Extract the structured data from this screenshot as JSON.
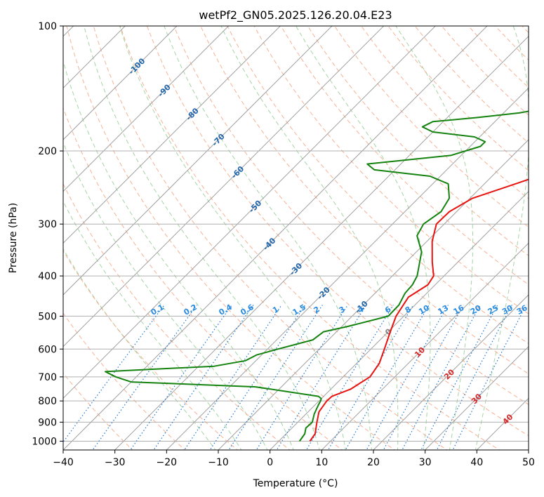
{
  "chart_data": {
    "type": "line",
    "title": "wetPf2_GN05.2025.126.20.04.E23",
    "xlabel": "Temperature (°C)",
    "ylabel": "Pressure (hPa)",
    "xlim": [
      -40,
      50
    ],
    "ylim": [
      1050,
      100
    ],
    "y_scale": "log",
    "grid": true,
    "x_ticks": [
      "−40",
      "−30",
      "−20",
      "−10",
      "0",
      "10",
      "20",
      "30",
      "40",
      "50"
    ],
    "x_tick_values": [
      -40,
      -30,
      -20,
      -10,
      0,
      10,
      20,
      30,
      40,
      50
    ],
    "y_ticks": [
      "100",
      "200",
      "300",
      "400",
      "500",
      "600",
      "700",
      "800",
      "900",
      "1000"
    ],
    "y_tick_values": [
      100,
      200,
      300,
      400,
      500,
      600,
      700,
      800,
      900,
      1000
    ],
    "series": [
      {
        "kind": "temperature",
        "color": "#e8130f",
        "p": [
          1000,
          960,
          925,
          900,
          850,
          800,
          780,
          750,
          700,
          650,
          600,
          550,
          500,
          450,
          420,
          400,
          370,
          330,
          300,
          280,
          260,
          240,
          220,
          200,
          180,
          160,
          140,
          120,
          110,
          100
        ],
        "t": [
          6.0,
          5.6,
          4.5,
          3.7,
          2.1,
          1.5,
          1.6,
          3.8,
          5.2,
          4.4,
          2.6,
          0.6,
          -1.5,
          -2.8,
          -1.4,
          -2.0,
          -5.0,
          -9.0,
          -11.5,
          -11.4,
          -9.5,
          -4.0,
          2.0,
          6.0,
          11.0,
          15.5,
          18.0,
          22.0,
          25.5,
          28.5
        ]
      },
      {
        "kind": "dewpoint",
        "color": "#15830f",
        "p": [
          1000,
          960,
          930,
          900,
          860,
          820,
          800,
          790,
          780,
          740,
          720,
          700,
          680,
          660,
          640,
          620,
          600,
          570,
          545,
          530,
          500,
          470,
          440,
          420,
          400,
          350,
          320,
          300,
          280,
          260,
          240,
          230,
          222,
          215,
          205,
          195,
          190,
          185,
          180,
          175,
          170,
          166,
          162,
          158,
          154,
          150,
          140,
          130,
          120,
          110,
          100
        ],
        "t": [
          4.0,
          3.6,
          2.7,
          2.8,
          1.6,
          0.7,
          0.3,
          0.0,
          -1.0,
          -15.0,
          -40.0,
          -44.0,
          -47.0,
          -27.0,
          -22.0,
          -21.0,
          -18.0,
          -13.0,
          -12.5,
          -9.0,
          -3.0,
          -3.1,
          -4.2,
          -4.4,
          -5.2,
          -9.0,
          -13.0,
          -14.0,
          -13.0,
          -14.0,
          -17.0,
          -22.0,
          -34.0,
          -36.5,
          -22.0,
          -18.0,
          -18.0,
          -21.0,
          -30.0,
          -33.0,
          -32.0,
          -24.0,
          -17.0,
          -13.0,
          -11.0,
          -10.0,
          -7.0,
          -4.0,
          -2.0,
          0.0,
          1.5
        ]
      }
    ],
    "isotherm_labels": [
      "-100",
      "-90",
      "-80",
      "-70",
      "-60",
      "-50",
      "-40",
      "-30",
      "-20",
      "-10",
      "0",
      "10",
      "20",
      "30",
      "40"
    ],
    "mixing_ratio_labels": [
      "0.1",
      "0.2",
      "0.4",
      "0.6",
      "1",
      "1.5",
      "2",
      "3",
      "4",
      "6",
      "8",
      "10",
      "13",
      "16",
      "20",
      "25",
      "30",
      "36"
    ],
    "colors": {
      "temperature": "#e8130f",
      "dewpoint": "#15830f",
      "isotherm": "#a0a0a0",
      "dry_adiabat": "#f4a582",
      "moist_adiabat": "#8fc98f",
      "mixing_ratio": "#1f78d1",
      "isotherm_label_cold": "#2166ac",
      "isotherm_label_warm": "#d62728",
      "isotherm_label_zero": "#7f7f7f",
      "mixing_ratio_label": "#2b8cdf"
    }
  }
}
